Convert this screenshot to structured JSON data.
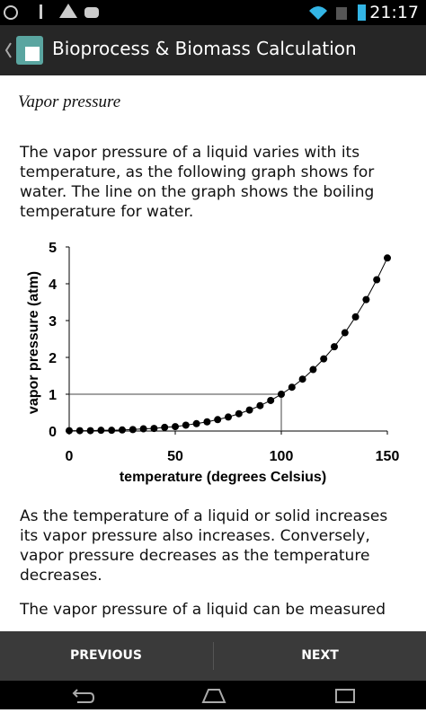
{
  "status_bar": {
    "time": "21:17"
  },
  "app_bar": {
    "title": "Bioprocess & Biomass Calculation"
  },
  "content": {
    "heading": "Vapor pressure",
    "paragraphs": [
      "The vapor pressure of a liquid varies with its temperature, as the following graph shows for water. The line on the graph shows the boiling temperature for water.",
      "As the temperature of a liquid or solid increases its vapor pressure also increases. Conversely, vapor pressure decreases as the temperature decreases.",
      "The vapor pressure of a liquid can be measured"
    ]
  },
  "chart_data": {
    "type": "line",
    "x_label": "temperature (degrees Celsius)",
    "y_label": "vapor pressure (atm)",
    "x": [
      0,
      5,
      10,
      15,
      20,
      25,
      30,
      35,
      40,
      45,
      50,
      55,
      60,
      65,
      70,
      75,
      80,
      85,
      90,
      95,
      100,
      105,
      110,
      115,
      120,
      125,
      130,
      135,
      140,
      145,
      150
    ],
    "series": [
      {
        "color": "#000000",
        "values": [
          0.01,
          0.01,
          0.01,
          0.02,
          0.02,
          0.03,
          0.04,
          0.06,
          0.07,
          0.1,
          0.12,
          0.16,
          0.2,
          0.25,
          0.31,
          0.38,
          0.47,
          0.57,
          0.69,
          0.83,
          1.0,
          1.19,
          1.41,
          1.67,
          1.96,
          2.29,
          2.67,
          3.1,
          3.57,
          4.11,
          4.7
        ]
      }
    ],
    "markers": true,
    "reference_line": {
      "x": 100,
      "y": 1
    },
    "xlim": [
      0,
      150
    ],
    "ylim": [
      0,
      5
    ],
    "xticks": [
      0,
      50,
      100,
      150
    ],
    "yticks": [
      0,
      1,
      2,
      3,
      4,
      5
    ]
  },
  "buttons": {
    "previous": "PREVIOUS",
    "next": "NEXT"
  }
}
